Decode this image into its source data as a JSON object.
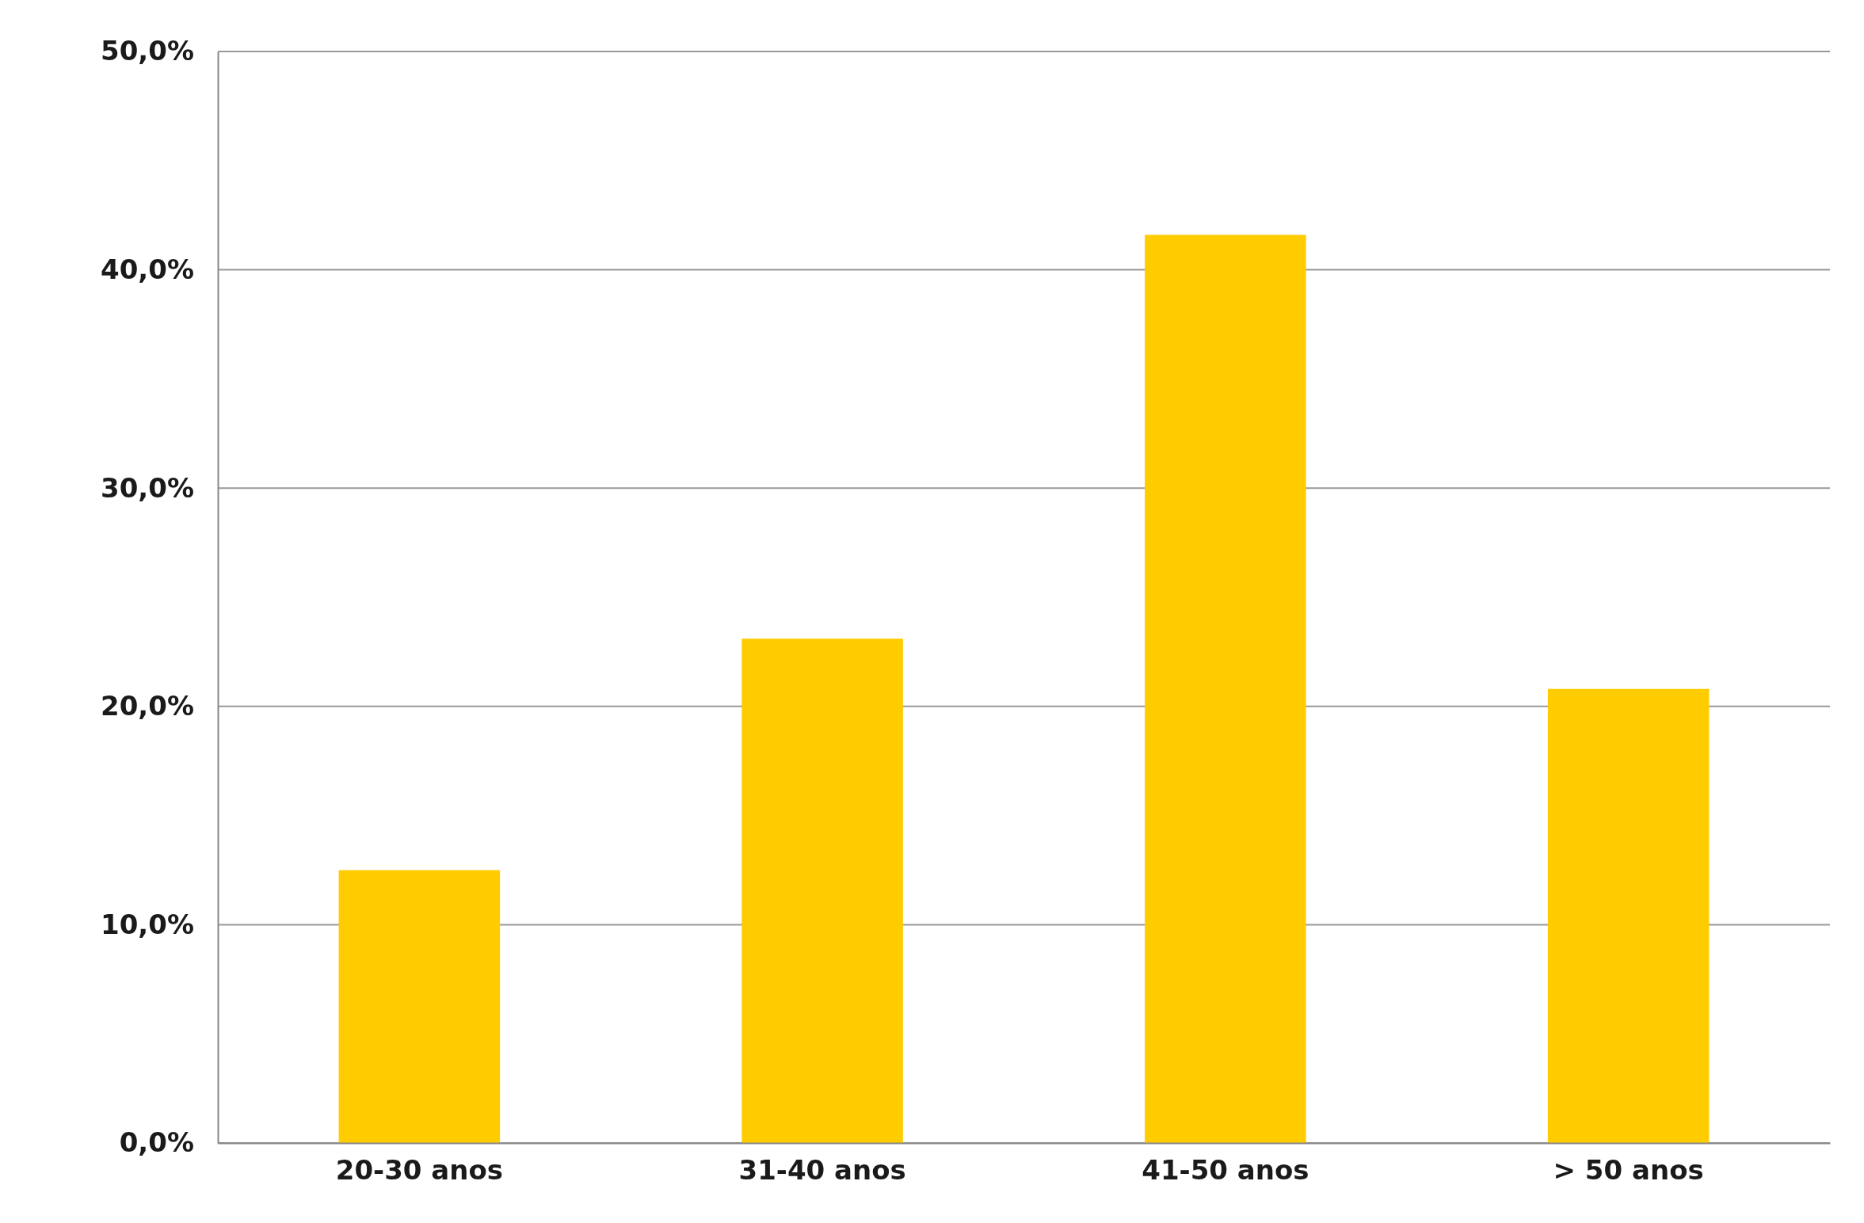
{
  "chart_data": {
    "type": "bar",
    "categories": [
      "20-30 anos",
      "31-40 anos",
      "41-50 anos",
      "> 50 anos"
    ],
    "values": [
      12.5,
      23.1,
      41.6,
      20.8
    ],
    "color": "#ffcc00",
    "ylim": [
      0,
      50
    ],
    "yticks": [
      {
        "value": 0,
        "label": "0,0%"
      },
      {
        "value": 10,
        "label": "10,0%"
      },
      {
        "value": 20,
        "label": "20,0%"
      },
      {
        "value": 30,
        "label": "30,0%"
      },
      {
        "value": 40,
        "label": "40,0%"
      },
      {
        "value": 50,
        "label": "50,0%"
      }
    ],
    "grid": "y"
  }
}
